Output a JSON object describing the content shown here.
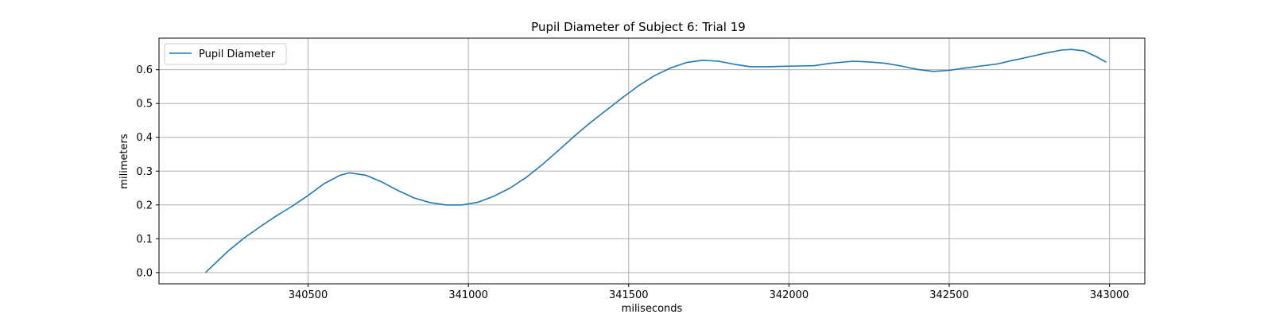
{
  "chart_data": {
    "type": "line",
    "title": "Pupil Diameter of Subject 6: Trial 19",
    "xlabel": "miliseconds",
    "ylabel": "milimeters",
    "xlim": [
      340035,
      343110
    ],
    "ylim": [
      -0.0333,
      0.6933
    ],
    "xticks": [
      340500,
      341000,
      341500,
      342000,
      342500,
      343000
    ],
    "yticks": [
      0.0,
      0.1,
      0.2,
      0.3,
      0.4,
      0.5,
      0.6
    ],
    "grid": true,
    "legend_position": "top-left",
    "colors": {
      "series": "#1f77b4",
      "grid": "#b0b0b0"
    },
    "series": [
      {
        "name": "Pupil Diameter",
        "x": [
          340180,
          340250,
          340300,
          340350,
          340400,
          340450,
          340500,
          340550,
          340600,
          340630,
          340680,
          340730,
          340780,
          340830,
          340880,
          340930,
          340980,
          341030,
          341080,
          341130,
          341180,
          341230,
          341280,
          341330,
          341380,
          341430,
          341480,
          341530,
          341580,
          341630,
          341680,
          341730,
          341780,
          341830,
          341880,
          341930,
          341980,
          342030,
          342080,
          342130,
          342200,
          342250,
          342300,
          342350,
          342400,
          342450,
          342500,
          342550,
          342600,
          342650,
          342700,
          342750,
          342800,
          342850,
          342880,
          342920,
          342960,
          342990
        ],
        "y": [
          0.0,
          0.063,
          0.102,
          0.135,
          0.167,
          0.196,
          0.228,
          0.263,
          0.288,
          0.295,
          0.288,
          0.268,
          0.243,
          0.221,
          0.207,
          0.2,
          0.2,
          0.208,
          0.226,
          0.25,
          0.281,
          0.319,
          0.36,
          0.403,
          0.443,
          0.48,
          0.517,
          0.552,
          0.582,
          0.605,
          0.621,
          0.628,
          0.625,
          0.616,
          0.609,
          0.609,
          0.61,
          0.611,
          0.612,
          0.619,
          0.625,
          0.623,
          0.619,
          0.611,
          0.601,
          0.595,
          0.598,
          0.605,
          0.611,
          0.617,
          0.628,
          0.638,
          0.649,
          0.658,
          0.66,
          0.656,
          0.638,
          0.622
        ]
      }
    ]
  }
}
